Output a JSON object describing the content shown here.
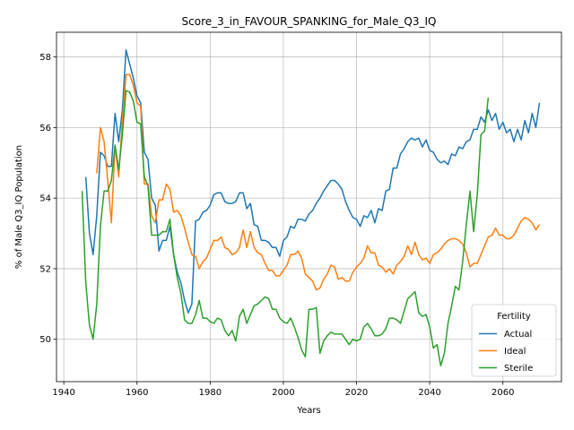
{
  "chart_data": {
    "type": "line",
    "title": "Score_3_in_FAVOUR_SPANKING_for_Male_Q3_IQ",
    "xlabel": "Years",
    "ylabel": "% of Male Q3_IQ Population",
    "xlim": [
      1938,
      2076
    ],
    "ylim": [
      48.8,
      58.7
    ],
    "xticks": [
      1940,
      1960,
      1980,
      2000,
      2020,
      2040,
      2060
    ],
    "yticks": [
      50,
      52,
      54,
      56,
      58
    ],
    "grid": true,
    "legend": {
      "title": "Fertility",
      "position": "bottom-right"
    },
    "series": [
      {
        "name": "Actual",
        "color": "#1f77b4",
        "x": [
          1946,
          1947,
          1948,
          1949,
          1950,
          1951,
          1952,
          1953,
          1954,
          1955,
          1956,
          1957,
          1958,
          1959,
          1960,
          1961,
          1962,
          1963,
          1964,
          1965,
          1966,
          1967,
          1968,
          1969,
          1970,
          1971,
          1972,
          1973,
          1974,
          1975,
          1976,
          1977,
          1978,
          1979,
          1980,
          1981,
          1982,
          1983,
          1984,
          1985,
          1986,
          1987,
          1988,
          1989,
          1990,
          1991,
          1992,
          1993,
          1994,
          1995,
          1996,
          1997,
          1998,
          1999,
          2000,
          2001,
          2002,
          2003,
          2004,
          2005,
          2006,
          2007,
          2008,
          2009,
          2010,
          2011,
          2012,
          2013,
          2014,
          2015,
          2016,
          2017,
          2018,
          2019,
          2020,
          2021,
          2022,
          2023,
          2024,
          2025,
          2026,
          2027,
          2028,
          2029,
          2030,
          2031,
          2032,
          2033,
          2034,
          2035,
          2036,
          2037,
          2038,
          2039,
          2040,
          2041,
          2042,
          2043,
          2044,
          2045,
          2046,
          2047,
          2048,
          2049,
          2050,
          2051,
          2052,
          2053,
          2054,
          2055,
          2056,
          2057,
          2058,
          2059,
          2060,
          2061,
          2062,
          2063,
          2064,
          2065,
          2066,
          2067,
          2068,
          2069,
          2070
        ],
        "values": [
          54.6,
          53.0,
          52.4,
          53.5,
          55.3,
          55.2,
          54.9,
          54.9,
          56.4,
          55.6,
          56.5,
          58.2,
          57.8,
          57.4,
          56.9,
          56.7,
          55.3,
          55.1,
          54.0,
          53.8,
          52.5,
          52.8,
          52.8,
          53.2,
          52.4,
          51.9,
          51.6,
          51.1,
          50.75,
          51.0,
          53.35,
          53.4,
          53.6,
          53.65,
          53.8,
          54.1,
          54.15,
          54.15,
          53.9,
          53.85,
          53.85,
          53.9,
          54.15,
          54.15,
          53.7,
          53.85,
          53.25,
          53.2,
          52.8,
          52.8,
          52.75,
          52.6,
          52.6,
          52.35,
          52.8,
          52.9,
          53.2,
          53.15,
          53.4,
          53.4,
          53.35,
          53.55,
          53.65,
          53.85,
          54.0,
          54.2,
          54.35,
          54.5,
          54.5,
          54.4,
          54.25,
          53.9,
          53.65,
          53.45,
          53.4,
          53.2,
          53.5,
          53.45,
          53.65,
          53.3,
          53.7,
          53.65,
          54.2,
          54.25,
          54.85,
          54.85,
          55.25,
          55.4,
          55.6,
          55.7,
          55.65,
          55.7,
          55.45,
          55.65,
          55.35,
          55.3,
          55.1,
          55.0,
          55.05,
          54.95,
          55.25,
          55.2,
          55.45,
          55.4,
          55.6,
          55.65,
          55.95,
          55.95,
          56.3,
          56.15,
          56.5,
          56.2,
          56.4,
          55.95,
          56.15,
          55.85,
          55.95,
          55.6,
          55.95,
          55.65,
          56.2,
          55.85,
          56.4,
          56.0,
          56.7
        ]
      },
      {
        "name": "Ideal",
        "color": "#ff7f0e",
        "x": [
          1949,
          1950,
          1951,
          1952,
          1953,
          1954,
          1955,
          1956,
          1957,
          1958,
          1959,
          1960,
          1961,
          1962,
          1963,
          1964,
          1965,
          1966,
          1967,
          1968,
          1969,
          1970,
          1971,
          1972,
          1973,
          1974,
          1975,
          1976,
          1977,
          1978,
          1979,
          1980,
          1981,
          1982,
          1983,
          1984,
          1985,
          1986,
          1987,
          1988,
          1989,
          1990,
          1991,
          1992,
          1993,
          1994,
          1995,
          1996,
          1997,
          1998,
          1999,
          2000,
          2001,
          2002,
          2003,
          2004,
          2005,
          2006,
          2007,
          2008,
          2009,
          2010,
          2011,
          2012,
          2013,
          2014,
          2015,
          2016,
          2017,
          2018,
          2019,
          2020,
          2021,
          2022,
          2023,
          2024,
          2025,
          2026,
          2027,
          2028,
          2029,
          2030,
          2031,
          2032,
          2033,
          2034,
          2035,
          2036,
          2037,
          2038,
          2039,
          2040,
          2041,
          2042,
          2043,
          2044,
          2045,
          2046,
          2047,
          2048,
          2049,
          2050,
          2051,
          2052,
          2053,
          2054,
          2055,
          2056,
          2057,
          2058,
          2059,
          2060,
          2061,
          2062,
          2063,
          2064,
          2065,
          2066,
          2067,
          2068,
          2069,
          2070
        ],
        "values": [
          54.7,
          56.0,
          55.6,
          54.5,
          53.3,
          55.5,
          54.6,
          56.2,
          57.5,
          57.5,
          57.2,
          56.7,
          56.6,
          54.4,
          54.4,
          53.5,
          53.3,
          53.95,
          53.95,
          54.4,
          54.25,
          53.6,
          53.65,
          53.5,
          53.15,
          52.75,
          52.4,
          52.35,
          52.0,
          52.2,
          52.3,
          52.55,
          52.8,
          52.8,
          52.9,
          52.6,
          52.55,
          52.4,
          52.45,
          52.6,
          53.1,
          52.6,
          53.05,
          52.6,
          52.45,
          52.4,
          52.15,
          51.95,
          51.95,
          51.8,
          51.8,
          51.95,
          52.1,
          52.4,
          52.4,
          52.5,
          52.3,
          51.85,
          51.75,
          51.65,
          51.4,
          51.45,
          51.7,
          51.85,
          52.1,
          52.05,
          51.7,
          51.75,
          51.65,
          51.65,
          51.9,
          52.05,
          52.15,
          52.3,
          52.65,
          52.45,
          52.45,
          52.1,
          52.05,
          51.9,
          52.0,
          51.85,
          52.1,
          52.2,
          52.35,
          52.65,
          52.4,
          52.75,
          52.4,
          52.25,
          52.3,
          52.15,
          52.4,
          52.45,
          52.55,
          52.7,
          52.8,
          52.85,
          52.85,
          52.8,
          52.7,
          52.45,
          52.05,
          52.15,
          52.15,
          52.4,
          52.65,
          52.9,
          52.95,
          53.15,
          52.95,
          52.95,
          52.85,
          52.85,
          52.95,
          53.15,
          53.35,
          53.45,
          53.4,
          53.3,
          53.1,
          53.25
        ]
      },
      {
        "name": "Sterile",
        "color": "#2ca02c",
        "x": [
          1945,
          1946,
          1947,
          1948,
          1949,
          1950,
          1951,
          1952,
          1953,
          1954,
          1955,
          1956,
          1957,
          1958,
          1959,
          1960,
          1961,
          1962,
          1963,
          1964,
          1965,
          1966,
          1967,
          1968,
          1969,
          1970,
          1971,
          1972,
          1973,
          1974,
          1975,
          1976,
          1977,
          1978,
          1979,
          1980,
          1981,
          1982,
          1983,
          1984,
          1985,
          1986,
          1987,
          1988,
          1989,
          1990,
          1991,
          1992,
          1993,
          1994,
          1995,
          1996,
          1997,
          1998,
          1999,
          2000,
          2001,
          2002,
          2003,
          2004,
          2005,
          2006,
          2007,
          2008,
          2009,
          2010,
          2011,
          2012,
          2013,
          2014,
          2015,
          2016,
          2017,
          2018,
          2019,
          2020,
          2021,
          2022,
          2023,
          2024,
          2025,
          2026,
          2027,
          2028,
          2029,
          2030,
          2031,
          2032,
          2033,
          2034,
          2035,
          2036,
          2037,
          2038,
          2039,
          2040,
          2041,
          2042,
          2043,
          2044,
          2045,
          2046,
          2047,
          2048,
          2049,
          2050,
          2051,
          2052,
          2053,
          2054,
          2055,
          2056
        ],
        "values": [
          54.2,
          51.6,
          50.4,
          50.0,
          51.0,
          53.2,
          54.2,
          54.2,
          54.5,
          55.5,
          54.8,
          55.8,
          57.05,
          57.0,
          56.75,
          56.15,
          56.1,
          54.6,
          54.35,
          52.95,
          52.95,
          52.95,
          53.05,
          53.05,
          53.4,
          52.4,
          51.75,
          51.3,
          50.55,
          50.45,
          50.45,
          50.7,
          51.1,
          50.6,
          50.6,
          50.5,
          50.45,
          50.6,
          50.55,
          50.25,
          50.1,
          50.25,
          49.95,
          50.65,
          50.85,
          50.45,
          50.7,
          50.95,
          51.0,
          51.1,
          51.2,
          51.15,
          50.85,
          50.85,
          50.6,
          50.5,
          50.45,
          50.6,
          50.35,
          50.05,
          49.7,
          49.5,
          50.85,
          50.85,
          50.9,
          49.6,
          49.95,
          50.1,
          50.2,
          50.15,
          50.15,
          50.15,
          50.0,
          49.85,
          50.0,
          49.95,
          50.0,
          50.35,
          50.45,
          50.3,
          50.1,
          50.1,
          50.15,
          50.3,
          50.6,
          50.6,
          50.55,
          50.45,
          50.8,
          51.15,
          51.25,
          51.35,
          50.75,
          50.65,
          50.7,
          50.35,
          49.75,
          49.85,
          49.25,
          49.6,
          50.45,
          50.95,
          51.5,
          51.4,
          52.2,
          53.25,
          54.2,
          53.05,
          54.1,
          55.8,
          55.9,
          56.85
        ]
      }
    ]
  }
}
